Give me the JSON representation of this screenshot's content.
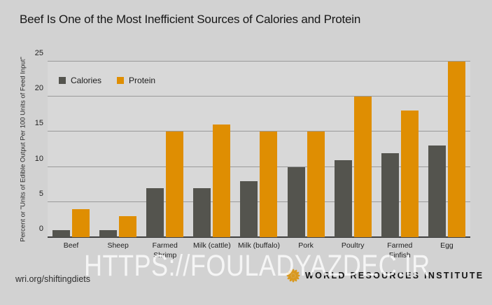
{
  "page": {
    "title": "Beef Is One of the Most Inefficient Sources of Calories and Protein",
    "source_url": "wri.org/shiftingdiets",
    "watermark": "HTTPS://FOULADYAZDEC.IR",
    "logo_text": "WORLD RESOURCES INSTITUTE"
  },
  "colors": {
    "page_background": "#d2d2d2",
    "plot_background": "#d8d8d8",
    "gridline": "#9a9a9a",
    "axis": "#3f3f3f",
    "calories_bar": "#54544e",
    "protein_bar": "#df8e02",
    "logo_gold": "#d9991f",
    "watermark_text": "#ffffff"
  },
  "chart_data": {
    "type": "bar",
    "title": "Beef Is One of the Most Inefficient Sources of Calories and Protein",
    "xlabel": "",
    "ylabel": "Percent or \"Units of Edible Output Per 100 Units of Feed Input\"",
    "ylim": [
      0,
      25
    ],
    "yticks": [
      0,
      5,
      10,
      15,
      20,
      25
    ],
    "grid": true,
    "legend_position": "top-left",
    "categories": [
      "Beef",
      "Sheep",
      "Farmed\nShrimp",
      "Milk (cattle)",
      "Milk (buffalo)",
      "Pork",
      "Poultry",
      "Farmed\nFinfish",
      "Egg"
    ],
    "series": [
      {
        "name": "Calories",
        "color": "#54544e",
        "values": [
          1,
          1,
          7,
          7,
          8,
          10,
          11,
          12,
          13
        ]
      },
      {
        "name": "Protein",
        "color": "#df8e02",
        "values": [
          4,
          3,
          15,
          16,
          15,
          15,
          20,
          18,
          25
        ]
      }
    ]
  }
}
